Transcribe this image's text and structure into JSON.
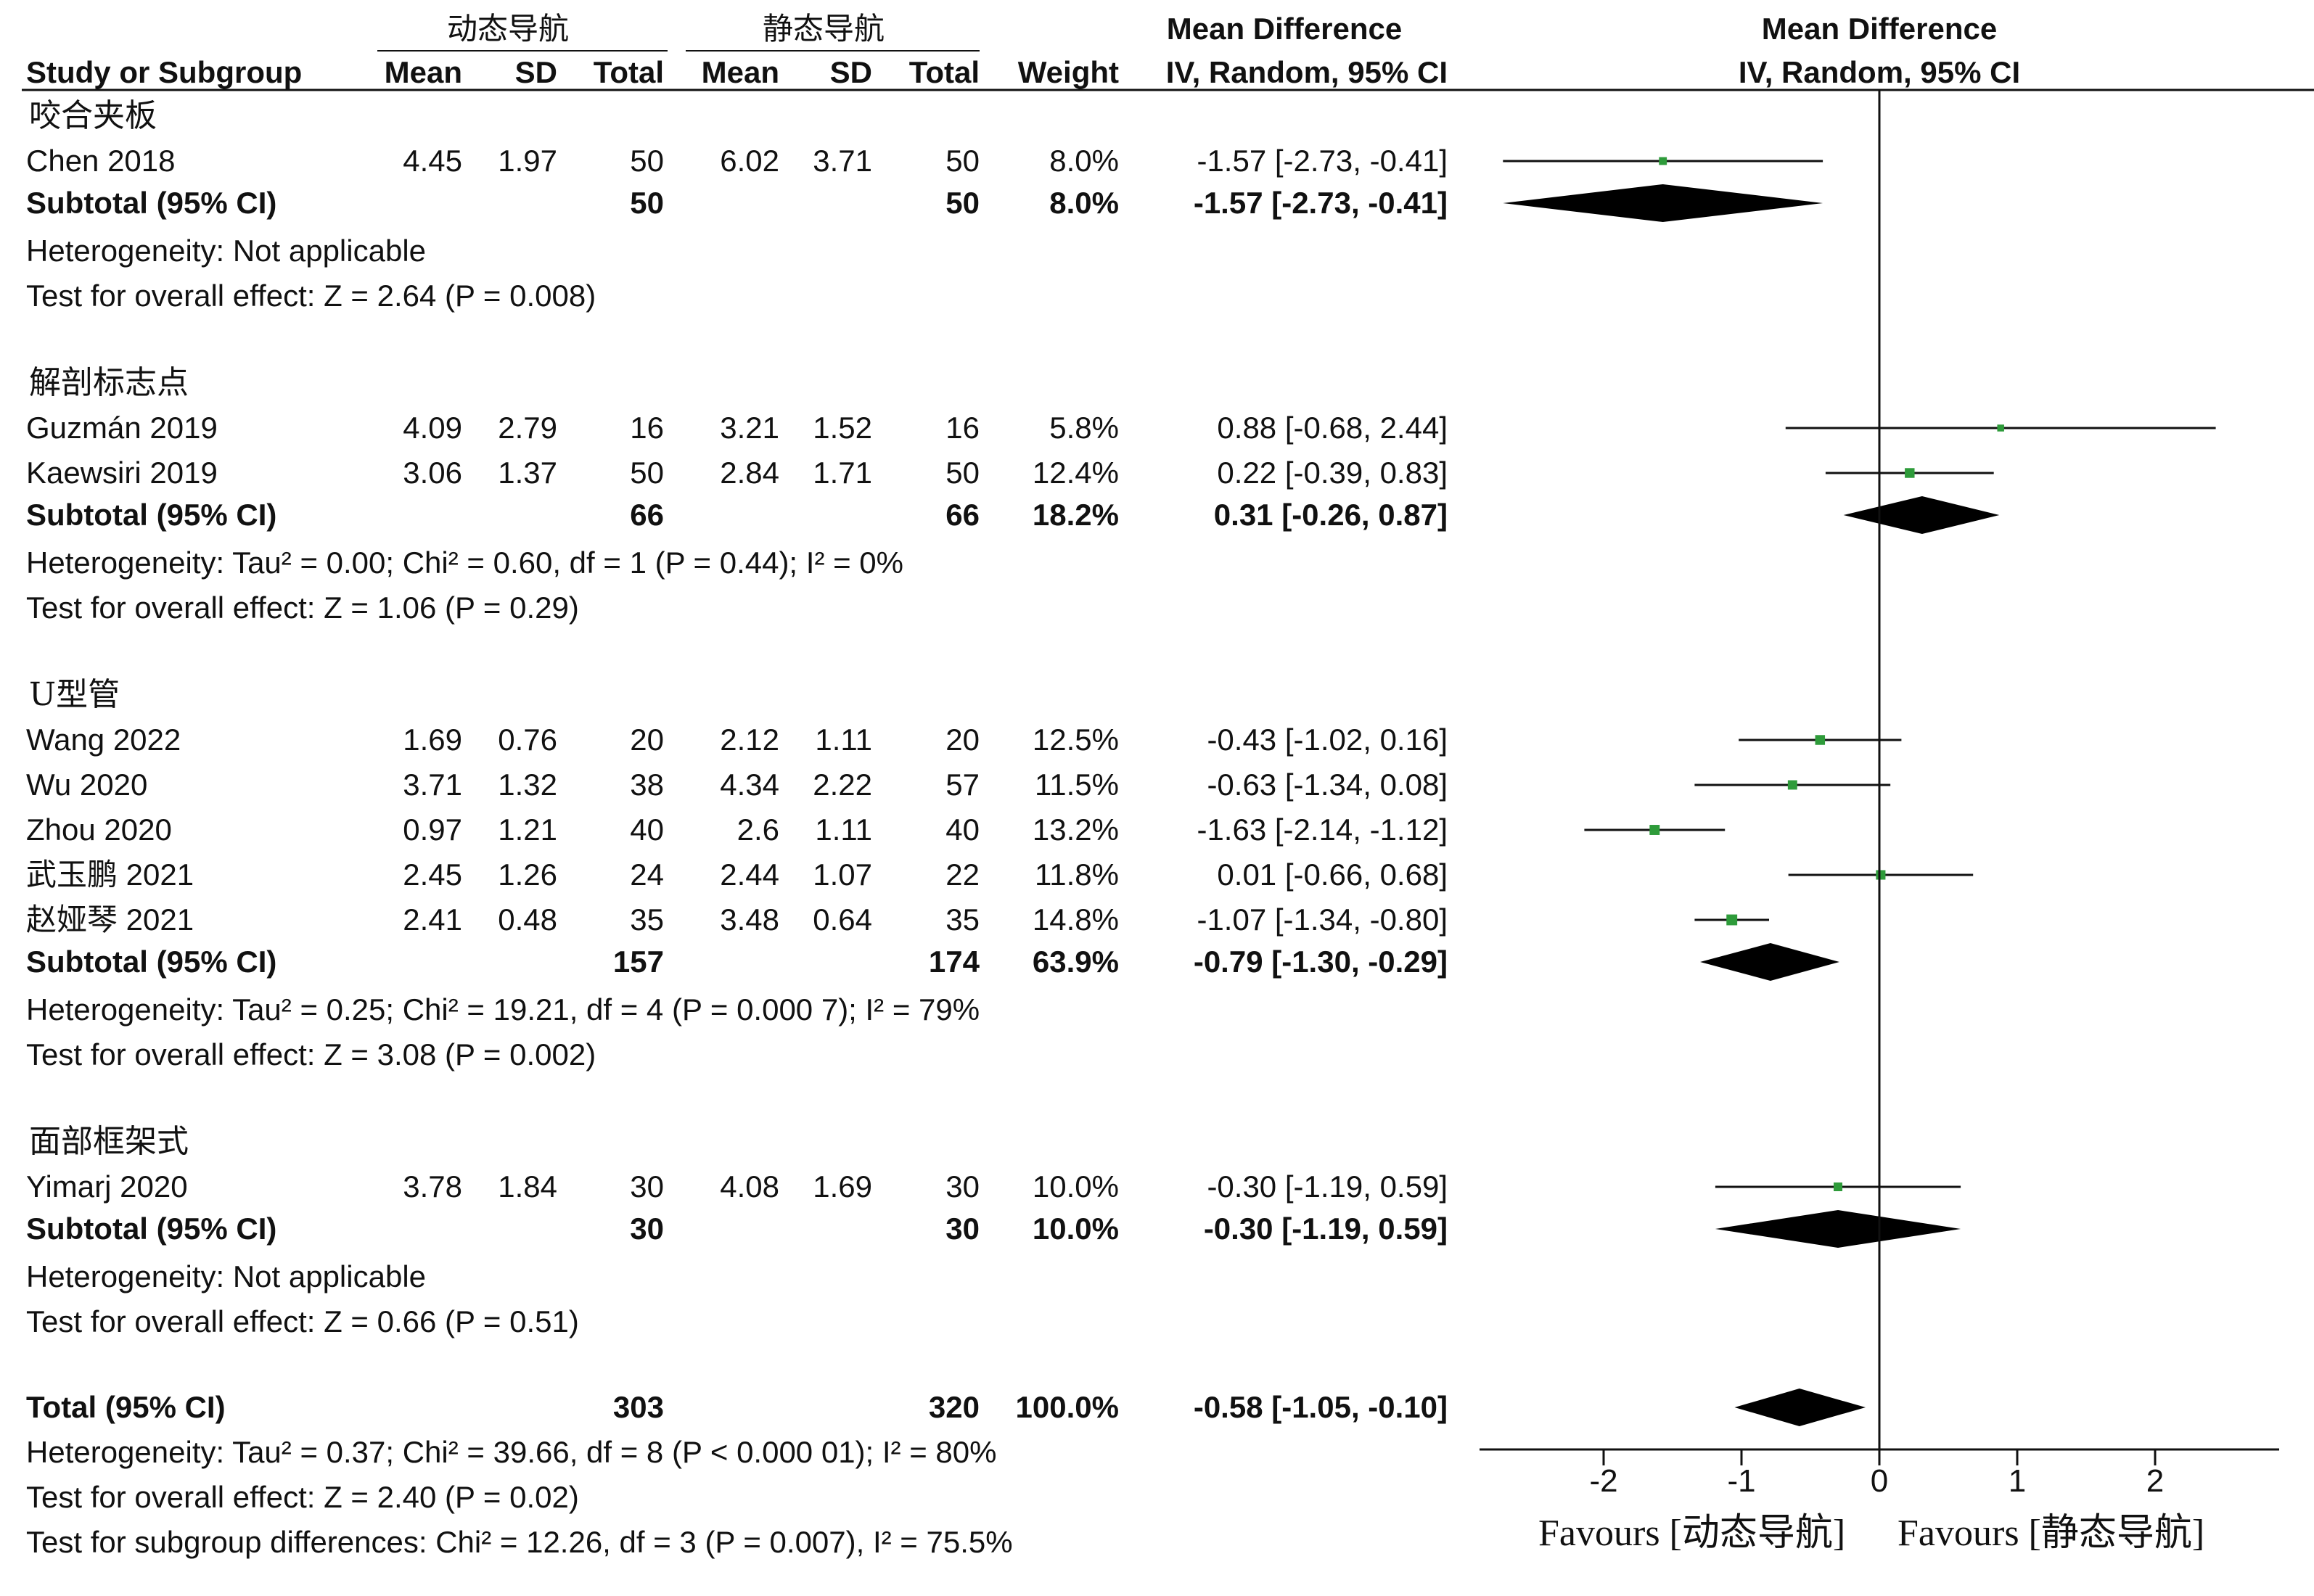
{
  "colors": {
    "marker": "#2e9b3a",
    "diamond": "#000000",
    "text": "#111111"
  },
  "header": {
    "group1": "动态导航",
    "group2": "静态导航",
    "md_title_left": "Mean Difference",
    "md_sub_left": "IV, Random, 95% CI",
    "md_title_right": "Mean Difference",
    "md_sub_right": "IV, Random, 95% CI",
    "col_study": "Study or Subgroup",
    "col_mean1": "Mean",
    "col_sd1": "SD",
    "col_total1": "Total",
    "col_mean2": "Mean",
    "col_sd2": "SD",
    "col_total2": "Total",
    "col_weight": "Weight"
  },
  "subgroups": [
    {
      "name": "咬合夹板",
      "studies": [
        {
          "study": "Chen 2018",
          "mean1": "4.45",
          "sd1": "1.97",
          "total1": "50",
          "mean2": "6.02",
          "sd2": "3.71",
          "total2": "50",
          "weight": "8.0%",
          "ci_text": "-1.57 [-2.73, -0.41]",
          "est": -1.57,
          "lo": -2.73,
          "hi": -0.41
        }
      ],
      "subtotal": {
        "label": "Subtotal (95% CI)",
        "total1": "50",
        "total2": "50",
        "weight": "8.0%",
        "ci_text": "-1.57 [-2.73, -0.41]",
        "est": -1.57,
        "lo": -2.73,
        "hi": -0.41
      },
      "heterogeneity": "Heterogeneity: Not applicable",
      "overall": "Test for overall effect: Z = 2.64 (P = 0.008)"
    },
    {
      "name": "解剖标志点",
      "studies": [
        {
          "study": "Guzmán 2019",
          "mean1": "4.09",
          "sd1": "2.79",
          "total1": "16",
          "mean2": "3.21",
          "sd2": "1.52",
          "total2": "16",
          "weight": "5.8%",
          "ci_text": "0.88 [-0.68, 2.44]",
          "est": 0.88,
          "lo": -0.68,
          "hi": 2.44
        },
        {
          "study": "Kaewsiri 2019",
          "mean1": "3.06",
          "sd1": "1.37",
          "total1": "50",
          "mean2": "2.84",
          "sd2": "1.71",
          "total2": "50",
          "weight": "12.4%",
          "ci_text": "0.22 [-0.39, 0.83]",
          "est": 0.22,
          "lo": -0.39,
          "hi": 0.83
        }
      ],
      "subtotal": {
        "label": "Subtotal (95% CI)",
        "total1": "66",
        "total2": "66",
        "weight": "18.2%",
        "ci_text": "0.31 [-0.26, 0.87]",
        "est": 0.31,
        "lo": -0.26,
        "hi": 0.87
      },
      "heterogeneity": "Heterogeneity: Tau² = 0.00; Chi² = 0.60, df = 1 (P = 0.44); I² = 0%",
      "overall": "Test for overall effect: Z = 1.06 (P = 0.29)"
    },
    {
      "name": "U型管",
      "studies": [
        {
          "study": "Wang 2022",
          "mean1": "1.69",
          "sd1": "0.76",
          "total1": "20",
          "mean2": "2.12",
          "sd2": "1.11",
          "total2": "20",
          "weight": "12.5%",
          "ci_text": "-0.43 [-1.02, 0.16]",
          "est": -0.43,
          "lo": -1.02,
          "hi": 0.16
        },
        {
          "study": "Wu 2020",
          "mean1": "3.71",
          "sd1": "1.32",
          "total1": "38",
          "mean2": "4.34",
          "sd2": "2.22",
          "total2": "57",
          "weight": "11.5%",
          "ci_text": "-0.63 [-1.34, 0.08]",
          "est": -0.63,
          "lo": -1.34,
          "hi": 0.08
        },
        {
          "study": "Zhou 2020",
          "mean1": "0.97",
          "sd1": "1.21",
          "total1": "40",
          "mean2": "2.6",
          "sd2": "1.11",
          "total2": "40",
          "weight": "13.2%",
          "ci_text": "-1.63 [-2.14, -1.12]",
          "est": -1.63,
          "lo": -2.14,
          "hi": -1.12
        },
        {
          "study": "武玉鹏 2021",
          "mean1": "2.45",
          "sd1": "1.26",
          "total1": "24",
          "mean2": "2.44",
          "sd2": "1.07",
          "total2": "22",
          "weight": "11.8%",
          "ci_text": "0.01 [-0.66, 0.68]",
          "est": 0.01,
          "lo": -0.66,
          "hi": 0.68
        },
        {
          "study": "赵娅琴 2021",
          "mean1": "2.41",
          "sd1": "0.48",
          "total1": "35",
          "mean2": "3.48",
          "sd2": "0.64",
          "total2": "35",
          "weight": "14.8%",
          "ci_text": "-1.07 [-1.34, -0.80]",
          "est": -1.07,
          "lo": -1.34,
          "hi": -0.8
        }
      ],
      "subtotal": {
        "label": "Subtotal (95% CI)",
        "total1": "157",
        "total2": "174",
        "weight": "63.9%",
        "ci_text": "-0.79 [-1.30, -0.29]",
        "est": -0.79,
        "lo": -1.3,
        "hi": -0.29
      },
      "heterogeneity": "Heterogeneity: Tau² = 0.25; Chi² = 19.21, df = 4 (P = 0.000 7); I² = 79%",
      "overall": "Test for overall effect: Z = 3.08 (P = 0.002)"
    },
    {
      "name": "面部框架式",
      "studies": [
        {
          "study": "Yimarj 2020",
          "mean1": "3.78",
          "sd1": "1.84",
          "total1": "30",
          "mean2": "4.08",
          "sd2": "1.69",
          "total2": "30",
          "weight": "10.0%",
          "ci_text": "-0.30 [-1.19, 0.59]",
          "est": -0.3,
          "lo": -1.19,
          "hi": 0.59
        }
      ],
      "subtotal": {
        "label": "Subtotal (95% CI)",
        "total1": "30",
        "total2": "30",
        "weight": "10.0%",
        "ci_text": "-0.30 [-1.19, 0.59]",
        "est": -0.3,
        "lo": -1.19,
        "hi": 0.59
      },
      "heterogeneity": "Heterogeneity: Not applicable",
      "overall": "Test for overall effect: Z = 0.66 (P = 0.51)"
    }
  ],
  "total": {
    "label": "Total (95% CI)",
    "total1": "303",
    "total2": "320",
    "weight": "100.0%",
    "ci_text": "-0.58 [-1.05, -0.10]",
    "est": -0.58,
    "lo": -1.05,
    "hi": -0.1,
    "heterogeneity": "Heterogeneity: Tau² = 0.37; Chi² = 39.66, df = 8 (P < 0.000 01); I² = 80%",
    "overall": "Test for overall effect: Z = 2.40 (P = 0.02)",
    "subgroup_diff": "Test for subgroup differences: Chi² = 12.26, df = 3 (P = 0.007), I² = 75.5%"
  },
  "axis": {
    "ticks": [
      -2,
      -1,
      0,
      1,
      2
    ],
    "tick_labels": [
      "-2",
      "-1",
      "0",
      "1",
      "2"
    ],
    "xlim": [
      -2.9,
      2.9
    ]
  },
  "footer": {
    "favours_left": "Favours [动态导航]",
    "favours_right": "Favours [静态导航]"
  },
  "chart_data": {
    "type": "forest",
    "measure": "Mean Difference, IV, Random, 95% CI",
    "groups": [
      "动态导航",
      "静态导航"
    ],
    "studies": [
      {
        "subgroup": "咬合夹板",
        "study": "Chen 2018",
        "est": -1.57,
        "lo": -2.73,
        "hi": -0.41,
        "weight": 8.0
      },
      {
        "subgroup": "解剖标志点",
        "study": "Guzmán 2019",
        "est": 0.88,
        "lo": -0.68,
        "hi": 2.44,
        "weight": 5.8
      },
      {
        "subgroup": "解剖标志点",
        "study": "Kaewsiri 2019",
        "est": 0.22,
        "lo": -0.39,
        "hi": 0.83,
        "weight": 12.4
      },
      {
        "subgroup": "U型管",
        "study": "Wang 2022",
        "est": -0.43,
        "lo": -1.02,
        "hi": 0.16,
        "weight": 12.5
      },
      {
        "subgroup": "U型管",
        "study": "Wu 2020",
        "est": -0.63,
        "lo": -1.34,
        "hi": 0.08,
        "weight": 11.5
      },
      {
        "subgroup": "U型管",
        "study": "Zhou 2020",
        "est": -1.63,
        "lo": -2.14,
        "hi": -1.12,
        "weight": 13.2
      },
      {
        "subgroup": "U型管",
        "study": "武玉鹏 2021",
        "est": 0.01,
        "lo": -0.66,
        "hi": 0.68,
        "weight": 11.8
      },
      {
        "subgroup": "U型管",
        "study": "赵娅琴 2021",
        "est": -1.07,
        "lo": -1.34,
        "hi": -0.8,
        "weight": 14.8
      },
      {
        "subgroup": "面部框架式",
        "study": "Yimarj 2020",
        "est": -0.3,
        "lo": -1.19,
        "hi": 0.59,
        "weight": 10.0
      }
    ],
    "subtotals": [
      {
        "subgroup": "咬合夹板",
        "est": -1.57,
        "lo": -2.73,
        "hi": -0.41,
        "weight": 8.0
      },
      {
        "subgroup": "解剖标志点",
        "est": 0.31,
        "lo": -0.26,
        "hi": 0.87,
        "weight": 18.2
      },
      {
        "subgroup": "U型管",
        "est": -0.79,
        "lo": -1.3,
        "hi": -0.29,
        "weight": 63.9
      },
      {
        "subgroup": "面部框架式",
        "est": -0.3,
        "lo": -1.19,
        "hi": 0.59,
        "weight": 10.0
      }
    ],
    "overall": {
      "est": -0.58,
      "lo": -1.05,
      "hi": -0.1,
      "weight": 100.0
    },
    "x_ticks": [
      -2,
      -1,
      0,
      1,
      2
    ],
    "xlim": [
      -2.9,
      2.9
    ],
    "grid": false
  }
}
